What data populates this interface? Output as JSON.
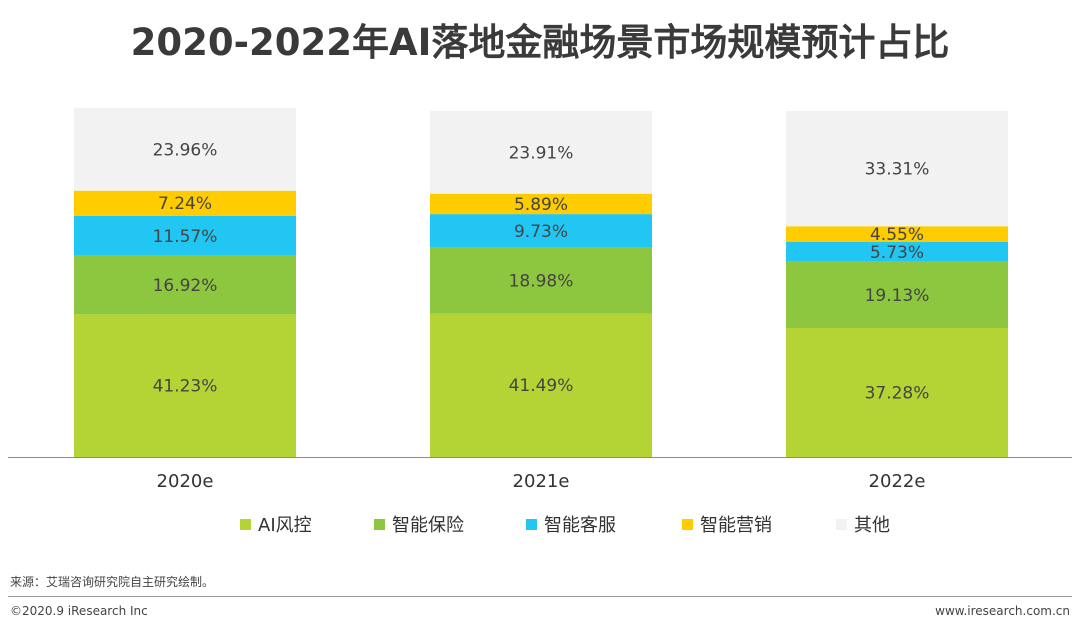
{
  "chart_data": {
    "type": "bar",
    "stacked": true,
    "title": "2020-2022年AI落地金融场景市场规模预计占比",
    "categories": [
      "2020e",
      "2021e",
      "2022e"
    ],
    "ylim": [
      0,
      100
    ],
    "grid": false,
    "legend_position": "bottom",
    "series": [
      {
        "name": "AI风控",
        "color": "#b4d334",
        "values": [
          41.23,
          41.49,
          37.28
        ],
        "labels": [
          "41.23%",
          "41.49%",
          "37.28%"
        ]
      },
      {
        "name": "智能保险",
        "color": "#8dc63f",
        "values": [
          16.92,
          18.98,
          19.13
        ],
        "labels": [
          "16.92%",
          "18.98%",
          "19.13%"
        ]
      },
      {
        "name": "智能客服",
        "color": "#21c7f2",
        "values": [
          11.57,
          9.73,
          5.73
        ],
        "labels": [
          "11.57%",
          "9.73%",
          "5.73%"
        ]
      },
      {
        "name": "智能营销",
        "color": "#ffcc00",
        "values": [
          7.24,
          5.89,
          4.55
        ],
        "labels": [
          "7.24%",
          "5.89%",
          "4.55%"
        ]
      },
      {
        "name": "其他",
        "color": "#f2f2f2",
        "values": [
          23.96,
          23.91,
          33.31
        ],
        "labels": [
          "23.96%",
          "23.91%",
          "33.31%"
        ]
      }
    ]
  },
  "source_note": "来源：艾瑞咨询研究院自主研究绘制。",
  "footer": {
    "copyright": "©2020.9 iResearch Inc",
    "website": "www.iresearch.com.cn"
  }
}
